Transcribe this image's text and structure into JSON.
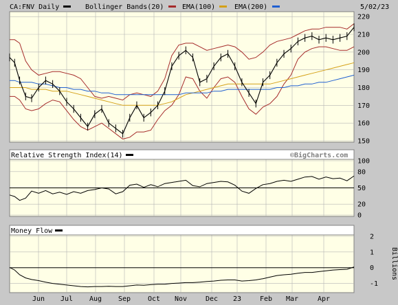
{
  "header": {
    "symbol": "CA:FNV Daily",
    "date": "5/02/23",
    "legend": [
      {
        "label": "Bollinger Bands(20)",
        "color": "#a52a2a"
      },
      {
        "label": "EMA(100)",
        "color": "#d4a017"
      },
      {
        "label": "EMA(200)",
        "color": "#1f5fd1"
      }
    ],
    "symbol_color": "#000000"
  },
  "watermark": "©BigCharts.com",
  "panels": {
    "rsi_title": "Relative Strength Index(14)",
    "mf_title": "Money Flow",
    "mf_units": "Billions"
  },
  "x_labels": [
    "Jun",
    "Jul",
    "Aug",
    "Sep",
    "Oct",
    "Nov",
    "Dec",
    "23",
    "Feb",
    "Mar",
    "Apr"
  ],
  "colors": {
    "plot_bg": "#ffffe6",
    "frame_bg": "#c8c8c8",
    "grid": "#b4b4b4",
    "price": "#000000",
    "bollinger": "#a52a2a",
    "ema100": "#d4a017",
    "ema200": "#1f5fd1"
  },
  "chart_data": [
    {
      "type": "line",
      "title": "CA:FNV Daily",
      "y_ticks": [
        150,
        160,
        170,
        180,
        190,
        200,
        210,
        220
      ],
      "ylim": [
        150,
        222
      ],
      "x": [
        0,
        5,
        10,
        16,
        22,
        29,
        36,
        43,
        50,
        57,
        64,
        71,
        78,
        85,
        92,
        99,
        106,
        113,
        120,
        127,
        134,
        141,
        148,
        155,
        162,
        169,
        176,
        183,
        190,
        197,
        204,
        211,
        218,
        225,
        232,
        239,
        246,
        253,
        260,
        267,
        274,
        281,
        288,
        295,
        302,
        309,
        316,
        323,
        330,
        337,
        344
      ],
      "series": [
        {
          "name": "CA:FNV",
          "values": [
            197,
            194,
            184,
            175,
            174,
            180,
            184,
            182,
            178,
            172,
            168,
            163,
            158,
            165,
            168,
            160,
            157,
            154,
            163,
            170,
            163,
            166,
            170,
            178,
            192,
            198,
            201,
            197,
            183,
            185,
            192,
            197,
            199,
            192,
            183,
            177,
            171,
            183,
            187,
            194,
            199,
            202,
            206,
            208,
            209,
            207,
            208,
            207,
            208,
            209,
            214
          ]
        },
        {
          "name": "EMA(100)",
          "values": [
            180,
            180,
            180,
            180,
            179,
            179,
            179,
            178,
            178,
            178,
            177,
            176,
            175,
            174,
            173,
            172,
            171,
            170,
            170,
            170,
            170,
            170,
            170,
            171,
            172,
            174,
            176,
            177,
            178,
            179,
            180,
            181,
            182,
            182,
            182,
            182,
            182,
            182,
            182,
            183,
            184,
            185,
            186,
            187,
            188,
            189,
            190,
            191,
            192,
            193,
            194
          ]
        },
        {
          "name": "EMA(200)",
          "values": [
            184,
            184,
            183,
            183,
            183,
            182,
            182,
            181,
            180,
            180,
            179,
            179,
            178,
            178,
            177,
            177,
            176,
            176,
            176,
            176,
            176,
            176,
            176,
            176,
            176,
            176,
            177,
            177,
            177,
            177,
            178,
            178,
            179,
            179,
            179,
            179,
            179,
            179,
            179,
            180,
            180,
            181,
            181,
            182,
            182,
            183,
            183,
            184,
            185,
            186,
            187
          ]
        },
        {
          "name": "Upper Band",
          "values": [
            207,
            207,
            205,
            195,
            190,
            187,
            188,
            189,
            189,
            188,
            187,
            185,
            180,
            175,
            174,
            175,
            174,
            173,
            176,
            177,
            176,
            175,
            178,
            185,
            198,
            204,
            205,
            205,
            203,
            201,
            202,
            203,
            204,
            203,
            200,
            196,
            197,
            200,
            204,
            206,
            207,
            208,
            210,
            212,
            213,
            213,
            214,
            214,
            214,
            213,
            216
          ]
        },
        {
          "name": "Lower Band",
          "values": [
            175,
            175,
            173,
            168,
            167,
            168,
            171,
            173,
            172,
            167,
            162,
            158,
            156,
            158,
            160,
            157,
            154,
            151,
            152,
            155,
            155,
            156,
            162,
            167,
            170,
            176,
            186,
            185,
            178,
            174,
            180,
            185,
            186,
            183,
            175,
            168,
            165,
            169,
            171,
            175,
            182,
            187,
            196,
            200,
            202,
            203,
            203,
            202,
            201,
            201,
            203
          ]
        }
      ]
    },
    {
      "type": "line",
      "title": "Relative Strength Index(14)",
      "y_ticks": [
        0,
        20,
        50,
        80,
        100
      ],
      "ylim": [
        0,
        100
      ],
      "reference_line": 50,
      "x": [
        0,
        5,
        10,
        16,
        22,
        29,
        36,
        43,
        50,
        57,
        64,
        71,
        78,
        85,
        92,
        99,
        106,
        113,
        120,
        127,
        134,
        141,
        148,
        155,
        162,
        169,
        176,
        183,
        190,
        197,
        204,
        211,
        218,
        225,
        232,
        239,
        246,
        253,
        260,
        267,
        274,
        281,
        288,
        295,
        302,
        309,
        316,
        323,
        330,
        337,
        344
      ],
      "series": [
        {
          "name": "RSI",
          "values": [
            37,
            34,
            27,
            31,
            44,
            40,
            45,
            39,
            42,
            38,
            43,
            40,
            45,
            47,
            50,
            48,
            39,
            43,
            55,
            57,
            51,
            56,
            52,
            58,
            60,
            62,
            64,
            54,
            52,
            58,
            60,
            62,
            61,
            55,
            44,
            40,
            49,
            56,
            58,
            62,
            64,
            62,
            66,
            70,
            71,
            66,
            70,
            67,
            68,
            63,
            72
          ]
        }
      ]
    },
    {
      "type": "line",
      "title": "Money Flow",
      "ylabel": "Billions",
      "y_ticks": [
        -1,
        0,
        1,
        2
      ],
      "ylim": [
        -1.5,
        2
      ],
      "reference_line": 0,
      "x": [
        0,
        5,
        10,
        16,
        22,
        29,
        36,
        43,
        50,
        57,
        64,
        71,
        78,
        85,
        92,
        99,
        106,
        113,
        120,
        127,
        134,
        141,
        148,
        155,
        162,
        169,
        176,
        183,
        190,
        197,
        204,
        211,
        218,
        225,
        232,
        239,
        246,
        253,
        260,
        267,
        274,
        281,
        288,
        295,
        302,
        309,
        316,
        323,
        330,
        337,
        344
      ],
      "series": [
        {
          "name": "Money Flow",
          "values": [
            0.02,
            -0.15,
            -0.45,
            -0.65,
            -0.75,
            -0.82,
            -0.92,
            -1.0,
            -1.05,
            -1.1,
            -1.15,
            -1.2,
            -1.22,
            -1.2,
            -1.2,
            -1.18,
            -1.2,
            -1.2,
            -1.15,
            -1.1,
            -1.12,
            -1.08,
            -1.05,
            -1.05,
            -1.0,
            -0.98,
            -0.95,
            -0.95,
            -0.92,
            -0.88,
            -0.85,
            -0.8,
            -0.78,
            -0.78,
            -0.85,
            -0.82,
            -0.78,
            -0.7,
            -0.6,
            -0.5,
            -0.45,
            -0.42,
            -0.35,
            -0.3,
            -0.3,
            -0.25,
            -0.2,
            -0.15,
            -0.12,
            -0.1,
            0.05
          ]
        }
      ]
    }
  ]
}
